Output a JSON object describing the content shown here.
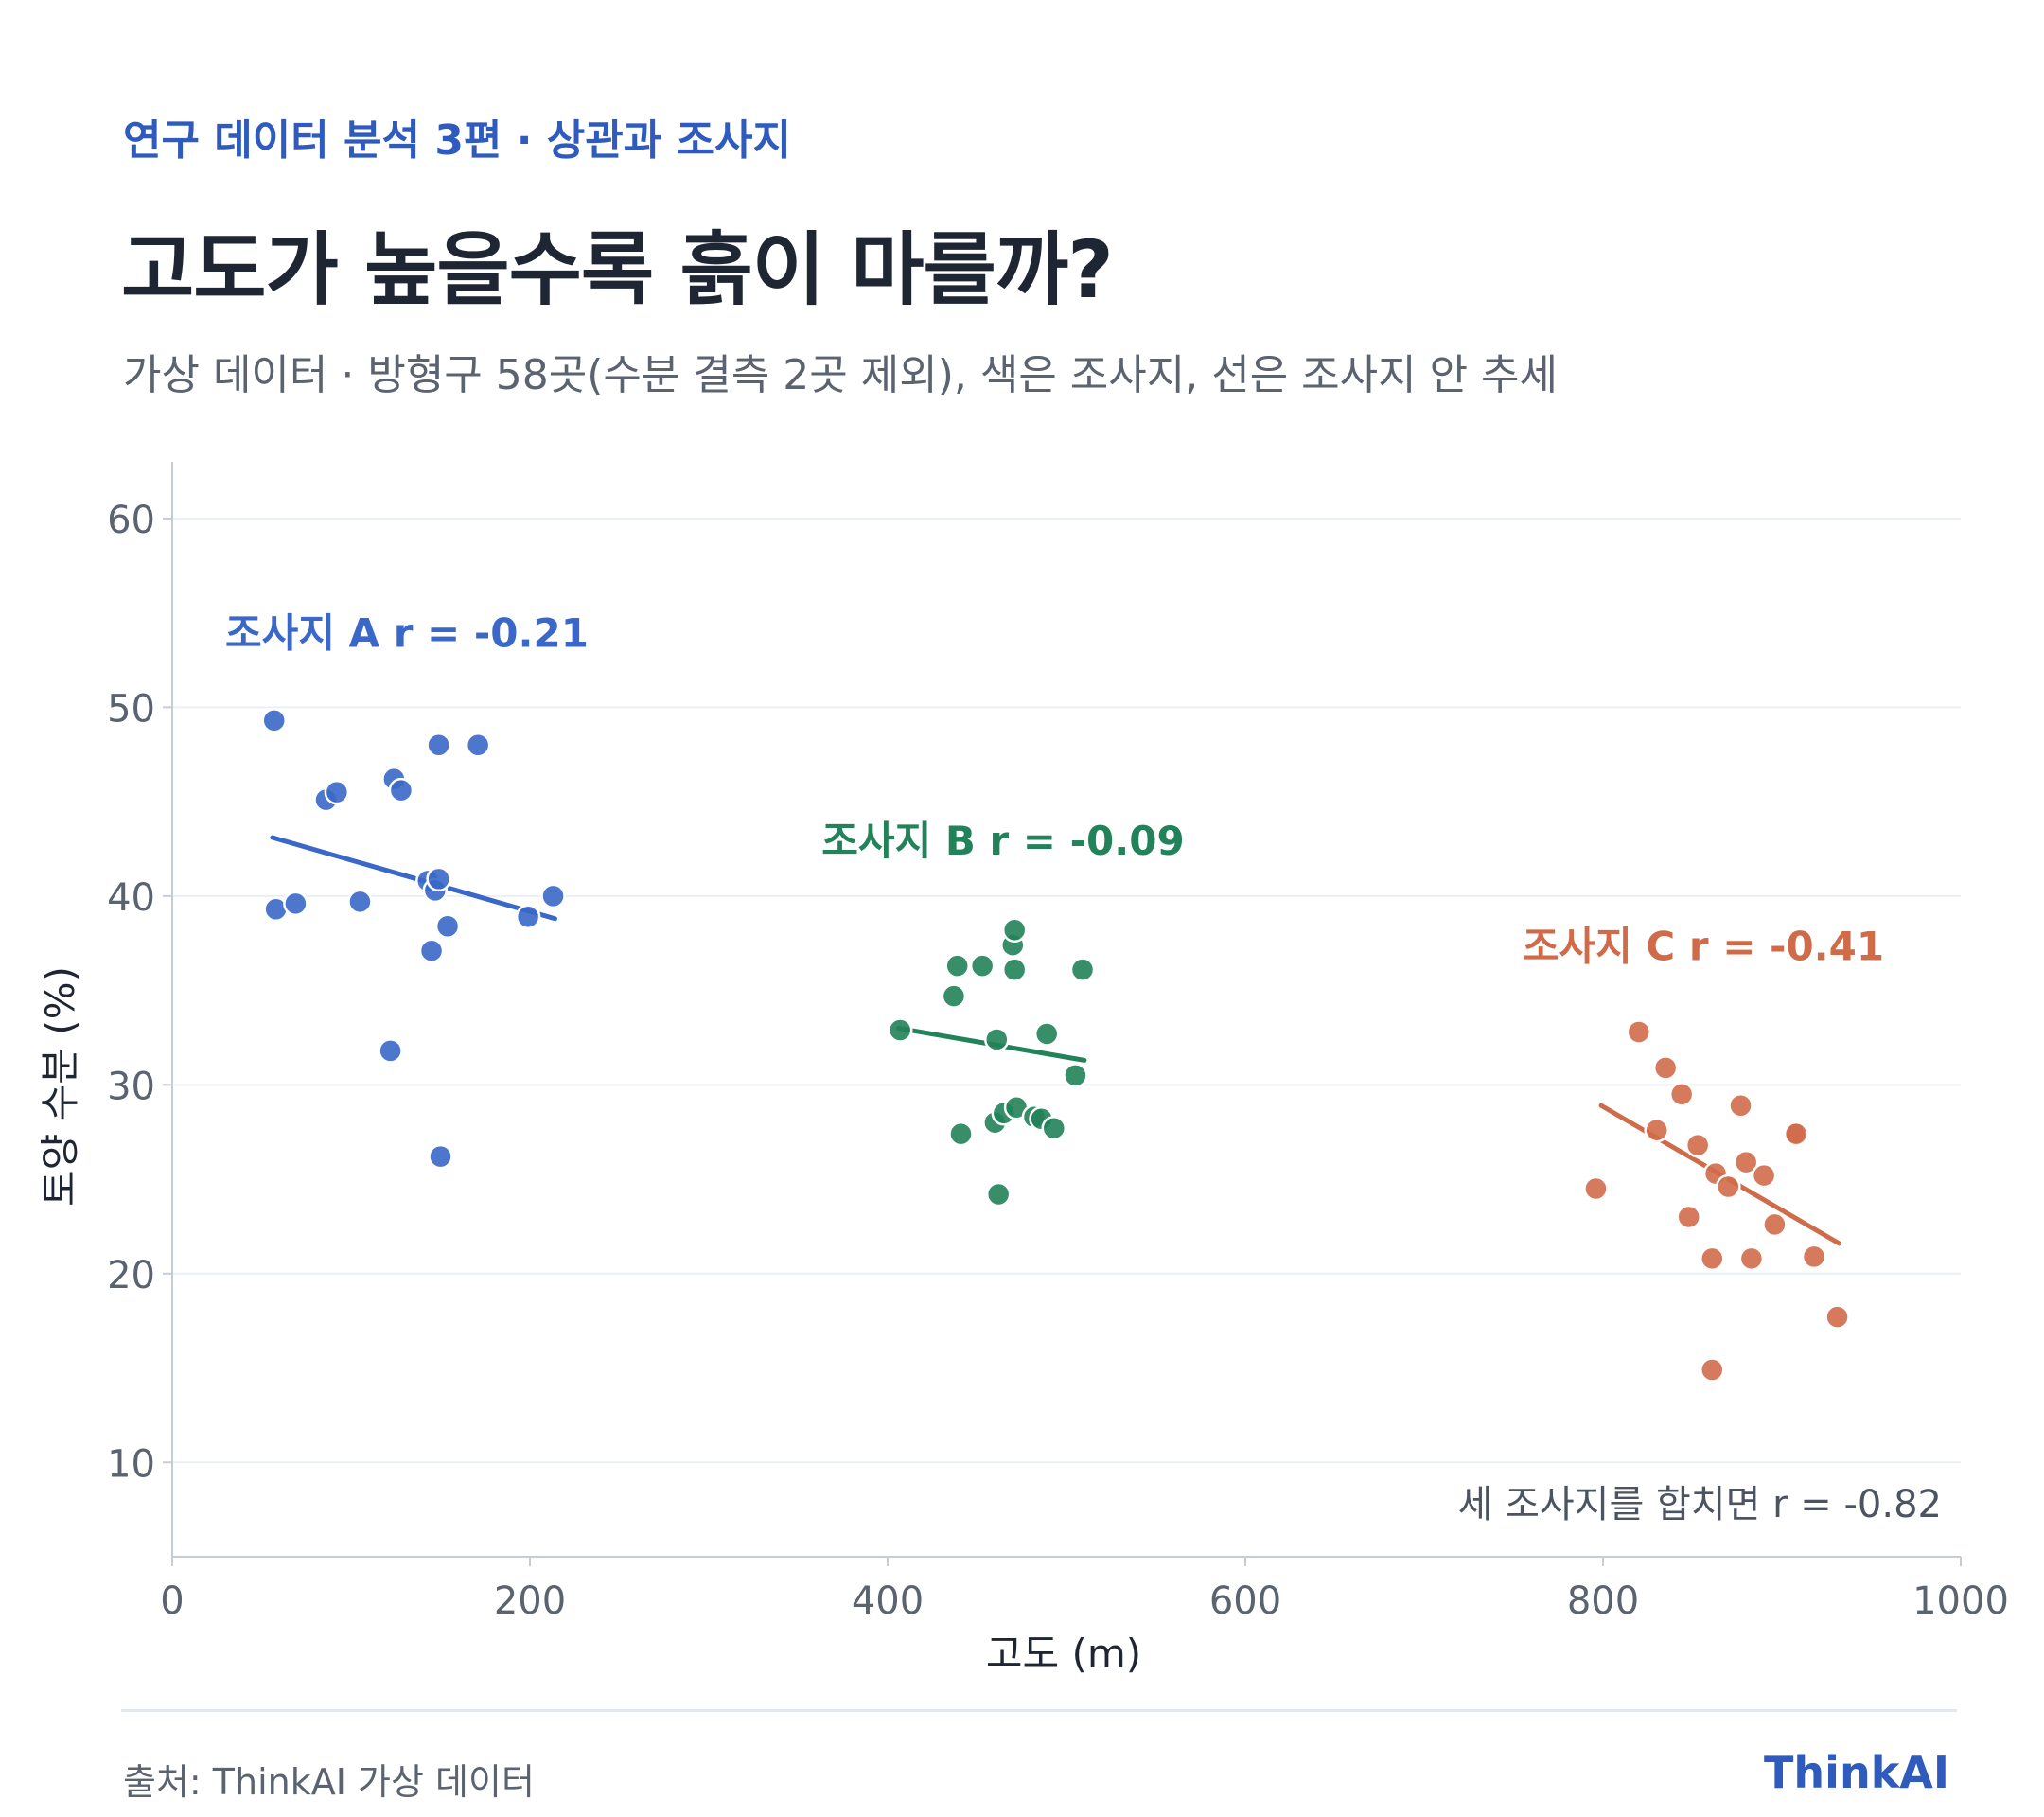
{
  "header": {
    "kicker": "연구 데이터 분석 3편 · 상관과 조사지",
    "title": "고도가 높을수록 흙이 마를까?",
    "subtitle": "가상 데이터 · 방형구 58곳(수분 결측 2곳 제외), 색은 조사지, 선은 조사지 안 추세"
  },
  "footer": {
    "source": "출처: ThinkAI 가상 데이터",
    "brand": "ThinkAI"
  },
  "chart_data": {
    "type": "scatter",
    "xlabel": "고도 (m)",
    "ylabel": "토양 수분 (%)",
    "xlim": [
      0,
      1000
    ],
    "ylim": [
      5,
      62
    ],
    "xticks": [
      0,
      200,
      400,
      600,
      800,
      1000
    ],
    "yticks": [
      10,
      20,
      30,
      40,
      50,
      60
    ],
    "grid": "horizontal",
    "annotation": "세 조사지를 합치면 r = -0.82",
    "series": [
      {
        "name": "조사지 A",
        "label": "조사지 A  r = -0.21",
        "color": "#3a68c8",
        "trend": [
          [
            56,
            43.1
          ],
          [
            214,
            38.8
          ]
        ],
        "points": [
          [
            57,
            49.3
          ],
          [
            58,
            39.3
          ],
          [
            69,
            39.6
          ],
          [
            86,
            45.1
          ],
          [
            92,
            45.5
          ],
          [
            105,
            39.7
          ],
          [
            122,
            31.8
          ],
          [
            124,
            46.2
          ],
          [
            128,
            45.6
          ],
          [
            143,
            40.8
          ],
          [
            145,
            37.1
          ],
          [
            147,
            40.3
          ],
          [
            149,
            40.9
          ],
          [
            149,
            48.0
          ],
          [
            150,
            26.2
          ],
          [
            154,
            38.4
          ],
          [
            171,
            48.0
          ],
          [
            199,
            38.9
          ],
          [
            213,
            40.0
          ]
        ]
      },
      {
        "name": "조사지 B",
        "label": "조사지 B  r = -0.09",
        "color": "#228259",
        "trend": [
          [
            406,
            33.0
          ],
          [
            510,
            31.3
          ]
        ],
        "points": [
          [
            407,
            32.9
          ],
          [
            437,
            34.7
          ],
          [
            439,
            36.3
          ],
          [
            441,
            27.4
          ],
          [
            453,
            36.3
          ],
          [
            460,
            28.0
          ],
          [
            461,
            32.4
          ],
          [
            462,
            24.2
          ],
          [
            465,
            28.5
          ],
          [
            470,
            37.4
          ],
          [
            471,
            38.2
          ],
          [
            471,
            36.1
          ],
          [
            472,
            28.8
          ],
          [
            482,
            28.3
          ],
          [
            486,
            28.2
          ],
          [
            489,
            32.7
          ],
          [
            493,
            27.7
          ],
          [
            505,
            30.5
          ],
          [
            509,
            36.1
          ]
        ]
      },
      {
        "name": "조사지 C",
        "label": "조사지 C  r = -0.41",
        "color": "#d06b4a",
        "trend": [
          [
            799,
            28.9
          ],
          [
            932,
            21.6
          ]
        ],
        "points": [
          [
            796,
            24.5
          ],
          [
            820,
            32.8
          ],
          [
            830,
            27.6
          ],
          [
            835,
            30.9
          ],
          [
            844,
            29.5
          ],
          [
            848,
            23.0
          ],
          [
            853,
            26.8
          ],
          [
            861,
            20.8
          ],
          [
            861,
            14.9
          ],
          [
            863,
            25.3
          ],
          [
            870,
            24.6
          ],
          [
            877,
            28.9
          ],
          [
            880,
            25.9
          ],
          [
            883,
            20.8
          ],
          [
            890,
            25.2
          ],
          [
            896,
            22.6
          ],
          [
            907,
            27.4
          ],
          [
            908,
            27.4
          ],
          [
            918,
            20.9
          ],
          [
            931,
            17.7
          ]
        ]
      }
    ]
  }
}
